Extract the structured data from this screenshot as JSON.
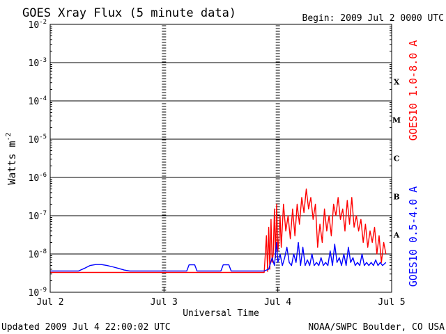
{
  "chart_data": {
    "type": "line",
    "title": "GOES Xray Flux (5 minute data)",
    "begin_text": "Begin:  2009 Jul 2 0000 UTC",
    "xlabel": "Universal Time",
    "ylabel": "Watts m",
    "ylabel_sup": "-2",
    "xlim": [
      0,
      3
    ],
    "x_ticks": [
      {
        "x": 0,
        "label": "Jul 2"
      },
      {
        "x": 1,
        "label": "Jul 3"
      },
      {
        "x": 2,
        "label": "Jul 4"
      },
      {
        "x": 3,
        "label": "Jul 5"
      }
    ],
    "yscale": "log",
    "ylim": [
      1e-09,
      0.01
    ],
    "y_ticks": [
      {
        "exp": -2,
        "base": "10",
        "sup": "-2"
      },
      {
        "exp": -3,
        "base": "10",
        "sup": "-3"
      },
      {
        "exp": -4,
        "base": "10",
        "sup": "-4"
      },
      {
        "exp": -5,
        "base": "10",
        "sup": "-5"
      },
      {
        "exp": -6,
        "base": "10",
        "sup": "-6"
      },
      {
        "exp": -7,
        "base": "10",
        "sup": "-7"
      },
      {
        "exp": -8,
        "base": "10",
        "sup": "-8"
      },
      {
        "exp": -9,
        "base": "10",
        "sup": "-9"
      }
    ],
    "grid_horizontal": true,
    "flare_classes": [
      {
        "label": "X",
        "exp": -3.5
      },
      {
        "label": "M",
        "exp": -4.5
      },
      {
        "label": "C",
        "exp": -5.5
      },
      {
        "label": "B",
        "exp": -6.5
      },
      {
        "label": "A",
        "exp": -7.5
      }
    ],
    "series": [
      {
        "name": "GOES10 1.0-8.0 A",
        "color": "#ff0000",
        "x": [
          0,
          0.2,
          0.5,
          0.8,
          1.0,
          1.3,
          1.6,
          1.88,
          1.9,
          1.91,
          1.92,
          1.93,
          1.94,
          1.95,
          1.96,
          1.97,
          1.98,
          1.99,
          2.0,
          2.01,
          2.02,
          2.03,
          2.05,
          2.07,
          2.09,
          2.11,
          2.13,
          2.15,
          2.17,
          2.19,
          2.21,
          2.23,
          2.25,
          2.27,
          2.29,
          2.31,
          2.33,
          2.35,
          2.37,
          2.39,
          2.41,
          2.43,
          2.45,
          2.47,
          2.49,
          2.51,
          2.53,
          2.55,
          2.57,
          2.59,
          2.61,
          2.63,
          2.65,
          2.67,
          2.69,
          2.71,
          2.73,
          2.75,
          2.77,
          2.79,
          2.81,
          2.83,
          2.85,
          2.87,
          2.89,
          2.91,
          2.93,
          2.95
        ],
        "values": [
          3.3e-09,
          3.3e-09,
          3.3e-09,
          3.3e-09,
          3.3e-09,
          3.3e-09,
          3.3e-09,
          3.3e-09,
          3e-08,
          3.5e-09,
          5e-08,
          4e-09,
          8e-08,
          6e-09,
          1e-08,
          1.5e-07,
          8e-09,
          2e-07,
          1.2e-08,
          2.5e-08,
          1e-07,
          1.5e-08,
          2e-07,
          4e-08,
          1e-07,
          2.5e-08,
          1.5e-07,
          3e-08,
          2e-07,
          6e-08,
          3e-07,
          1.2e-07,
          5e-07,
          1.5e-07,
          3e-07,
          8e-08,
          2e-07,
          1.5e-08,
          6e-08,
          2e-08,
          1.5e-07,
          4e-08,
          1e-07,
          3e-08,
          2e-07,
          1e-07,
          3e-07,
          8e-08,
          1.5e-07,
          4e-08,
          2.5e-07,
          6e-08,
          3e-07,
          5e-08,
          1e-07,
          4e-08,
          8e-08,
          2e-08,
          6e-08,
          1.5e-08,
          4e-08,
          2e-08,
          5e-08,
          1e-08,
          3e-08,
          6e-09,
          2e-08,
          1e-08
        ]
      },
      {
        "name": "GOES10 0.5-4.0 A",
        "color": "#0000ff",
        "x": [
          0,
          0.25,
          0.3,
          0.35,
          0.4,
          0.45,
          0.5,
          0.55,
          0.6,
          0.65,
          0.7,
          1.0,
          1.2,
          1.22,
          1.27,
          1.29,
          1.5,
          1.52,
          1.57,
          1.59,
          1.88,
          1.92,
          1.95,
          1.97,
          1.99,
          2.0,
          2.02,
          2.04,
          2.06,
          2.08,
          2.1,
          2.12,
          2.14,
          2.16,
          2.18,
          2.2,
          2.22,
          2.24,
          2.26,
          2.28,
          2.3,
          2.32,
          2.34,
          2.36,
          2.38,
          2.4,
          2.42,
          2.44,
          2.46,
          2.48,
          2.5,
          2.52,
          2.54,
          2.56,
          2.58,
          2.6,
          2.62,
          2.64,
          2.66,
          2.68,
          2.7,
          2.72,
          2.74,
          2.76,
          2.78,
          2.8,
          2.82,
          2.84,
          2.86,
          2.88,
          2.9,
          2.92,
          2.95
        ],
        "values": [
          3.6e-09,
          3.6e-09,
          4.2e-09,
          5e-09,
          5.3e-09,
          5.3e-09,
          5e-09,
          4.6e-09,
          4.2e-09,
          3.8e-09,
          3.6e-09,
          3.6e-09,
          3.6e-09,
          5.2e-09,
          5.2e-09,
          3.6e-09,
          3.6e-09,
          5.2e-09,
          5.2e-09,
          3.6e-09,
          3.6e-09,
          4e-09,
          8e-09,
          5e-09,
          2e-08,
          6e-09,
          1e-08,
          5e-09,
          8e-09,
          1.5e-08,
          6e-09,
          5e-09,
          1e-08,
          6e-09,
          2e-08,
          5e-09,
          1.5e-08,
          5e-09,
          7e-09,
          5e-09,
          1e-08,
          5e-09,
          6e-09,
          5e-09,
          8e-09,
          5e-09,
          6e-09,
          5e-09,
          1.2e-08,
          5e-09,
          1.8e-08,
          6e-09,
          8e-09,
          5e-09,
          1e-08,
          5e-09,
          1.5e-08,
          6e-09,
          8e-09,
          5e-09,
          6e-09,
          5e-09,
          1e-08,
          5e-09,
          6e-09,
          5e-09,
          6e-09,
          5e-09,
          7e-09,
          5e-09,
          6e-09,
          5e-09,
          6e-09
        ]
      }
    ],
    "footer_left": "Updated 2009 Jul  4 22:00:02 UTC",
    "footer_right": "NOAA/SWPC Boulder, CO USA"
  }
}
